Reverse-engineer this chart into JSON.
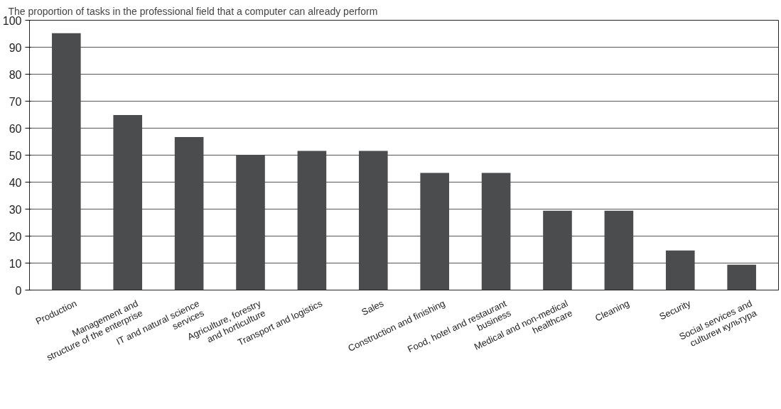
{
  "chart_data": {
    "type": "bar",
    "title": "The proportion of tasks in the professional field that a computer can already perform",
    "categories": [
      "Production",
      "Management and\nstructure of the enterprise",
      "IT and natural science\nservices",
      "Agriculture, forestry\nand horticulture",
      "Transport and logistics",
      "Sales",
      "Construction and finishing",
      "Food, hotel and restaurant\nbusiness",
      "Medical and non-medical\nhealthcare",
      "Cleaning",
      "Security",
      "Social services and\ncultureи культура"
    ],
    "values": [
      95.2,
      64.9,
      56.7,
      50.0,
      51.6,
      51.6,
      43.4,
      43.4,
      29.4,
      29.4,
      14.7,
      9.4
    ],
    "color": "#4b4c4e",
    "ylim": [
      0,
      100
    ],
    "yticks": [
      0,
      10,
      20,
      30,
      40,
      50,
      60,
      70,
      80,
      90,
      100
    ],
    "grid": "y"
  }
}
